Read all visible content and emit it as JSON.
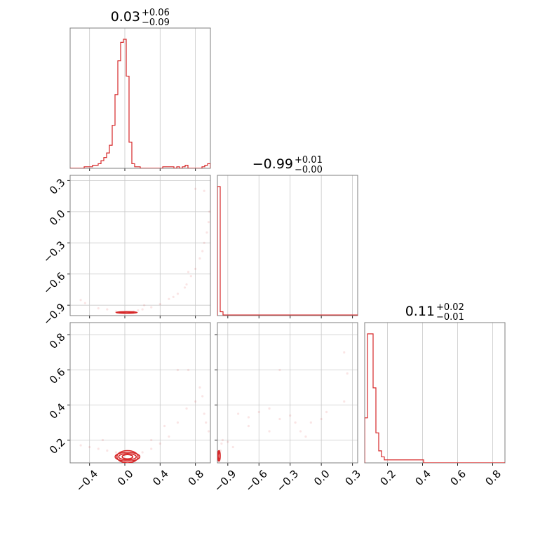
{
  "chart_data": {
    "type": "corner",
    "colors": {
      "series": "#d62728",
      "grid": "#c8c8c8",
      "frame": "#7f7f7f"
    },
    "params": [
      {
        "range": [
          -0.62,
          0.97
        ],
        "ticks": [
          -0.4,
          0.0,
          0.4,
          0.8
        ],
        "tick_labels": [
          "−0.4",
          "0.0",
          "0.4",
          "0.8"
        ],
        "title_main": "0.03",
        "title_plus": "+0.06",
        "title_minus": "−0.09"
      },
      {
        "range": [
          -1.0,
          0.35
        ],
        "ticks": [
          -0.9,
          -0.6,
          -0.3,
          0.0,
          0.3
        ],
        "tick_labels": [
          "−0.9",
          "−0.6",
          "−0.3",
          "0.0",
          "0.3"
        ],
        "title_main": "−0.99",
        "title_plus": "+0.01",
        "title_minus": "−0.00"
      },
      {
        "range": [
          0.07,
          0.87
        ],
        "ticks": [
          0.2,
          0.4,
          0.6,
          0.8
        ],
        "tick_labels": [
          "0.2",
          "0.4",
          "0.6",
          "0.8"
        ],
        "title_main": "0.11",
        "title_plus": "+0.02",
        "title_minus": "−0.01"
      }
    ],
    "hist1d": [
      {
        "param": 0,
        "edges_start": -0.62,
        "bin_width": 0.0318,
        "counts": [
          0,
          0,
          0,
          0,
          0,
          1,
          1,
          1,
          2,
          2,
          3,
          5,
          7,
          10,
          15,
          28,
          48,
          70,
          82,
          84,
          60,
          17,
          3,
          1,
          1,
          0,
          0,
          0,
          0,
          0,
          0,
          0,
          0,
          1,
          1,
          1,
          1,
          0,
          1,
          0,
          1,
          2,
          0,
          0,
          0,
          0,
          0,
          1,
          2,
          3
        ]
      },
      {
        "param": 1,
        "edges_start": -1.0,
        "bin_width": 0.027,
        "counts": [
          100,
          3,
          0.5,
          0.5,
          0.5,
          0.5,
          0.5,
          0.5,
          0.5,
          0.5,
          0.5,
          0.5,
          0.5,
          0.5,
          0.5,
          0.5,
          0.5,
          0.5,
          0.5,
          0.5,
          0.5,
          0.5,
          0.5,
          0.5,
          0.5,
          0.5,
          0.5,
          0.5,
          0.5,
          0.5,
          0.5,
          0.5,
          0.5,
          0.5,
          0.5,
          0.5,
          0.5,
          0.5,
          0.5,
          0.5,
          0.5,
          0.5,
          0.5,
          0.5,
          0.5,
          0.5,
          0.5,
          0.5,
          0.5,
          0.5
        ]
      },
      {
        "param": 2,
        "edges_start": 0.07,
        "bin_width": 0.016,
        "counts": [
          15,
          43,
          43,
          25,
          10,
          4,
          2,
          1,
          1,
          1,
          1,
          1,
          1,
          1,
          1,
          1,
          1,
          1,
          1,
          1,
          1,
          0,
          0,
          0,
          0,
          0,
          0,
          0,
          0,
          0,
          0,
          0,
          0,
          0,
          0,
          0,
          0,
          0,
          0,
          0,
          0,
          0,
          0,
          0,
          0,
          0,
          0,
          0,
          0,
          0
        ]
      }
    ],
    "scatter": [
      {
        "x": 0,
        "y": 1,
        "points": [
          [
            -0.3,
            -0.93
          ],
          [
            -0.2,
            -0.94
          ],
          [
            -0.1,
            -0.96
          ],
          [
            0.0,
            -0.97
          ],
          [
            0.05,
            -0.965
          ],
          [
            0.1,
            -0.96
          ],
          [
            0.15,
            -0.95
          ],
          [
            0.2,
            -0.94
          ],
          [
            0.3,
            -0.92
          ],
          [
            0.4,
            -0.89
          ],
          [
            0.5,
            -0.84
          ],
          [
            0.6,
            -0.79
          ],
          [
            0.7,
            -0.7
          ],
          [
            0.75,
            -0.62
          ],
          [
            0.8,
            -0.55
          ],
          [
            0.85,
            -0.45
          ],
          [
            0.9,
            -0.3
          ],
          [
            0.93,
            -0.2
          ],
          [
            0.95,
            -0.1
          ],
          [
            0.96,
            0.0
          ],
          [
            0.88,
            -0.38
          ],
          [
            0.68,
            -0.73
          ],
          [
            -0.45,
            -0.88
          ],
          [
            -0.5,
            -0.85
          ],
          [
            0.22,
            -0.9
          ],
          [
            0.8,
            0.22
          ],
          [
            0.9,
            0.2
          ],
          [
            0.55,
            -0.82
          ],
          [
            0.72,
            -0.58
          ]
        ]
      },
      {
        "x": 0,
        "y": 2,
        "points": [
          [
            -0.5,
            0.17
          ],
          [
            -0.4,
            0.16
          ],
          [
            -0.3,
            0.15
          ],
          [
            -0.2,
            0.14
          ],
          [
            -0.1,
            0.13
          ],
          [
            0.0,
            0.12
          ],
          [
            0.1,
            0.12
          ],
          [
            0.2,
            0.13
          ],
          [
            0.3,
            0.15
          ],
          [
            0.4,
            0.18
          ],
          [
            0.5,
            0.22
          ],
          [
            0.6,
            0.3
          ],
          [
            0.7,
            0.38
          ],
          [
            0.8,
            0.42
          ],
          [
            0.9,
            0.35
          ],
          [
            0.95,
            0.25
          ],
          [
            0.85,
            0.5
          ],
          [
            0.72,
            0.6
          ],
          [
            0.6,
            0.6
          ],
          [
            0.88,
            0.45
          ],
          [
            -0.25,
            0.2
          ],
          [
            0.3,
            0.2
          ],
          [
            0.45,
            0.28
          ],
          [
            0.92,
            0.3
          ]
        ]
      },
      {
        "x": 1,
        "y": 2,
        "points": [
          [
            -0.98,
            0.12
          ],
          [
            -0.97,
            0.14
          ],
          [
            -0.96,
            0.18
          ],
          [
            -0.95,
            0.2
          ],
          [
            -0.9,
            0.19
          ],
          [
            -0.85,
            0.16
          ],
          [
            -0.8,
            0.35
          ],
          [
            -0.7,
            0.33
          ],
          [
            -0.6,
            0.36
          ],
          [
            -0.5,
            0.38
          ],
          [
            -0.4,
            0.32
          ],
          [
            -0.3,
            0.34
          ],
          [
            -0.25,
            0.3
          ],
          [
            -0.2,
            0.25
          ],
          [
            -0.15,
            0.22
          ],
          [
            -0.4,
            0.6
          ],
          [
            -0.1,
            0.3
          ],
          [
            0.0,
            0.32
          ],
          [
            0.05,
            0.36
          ],
          [
            0.22,
            0.42
          ],
          [
            0.25,
            0.58
          ],
          [
            0.22,
            0.7
          ],
          [
            -0.5,
            0.25
          ],
          [
            -0.7,
            0.28
          ]
        ]
      }
    ],
    "contours": [
      {
        "x": 0,
        "y": 1,
        "center": [
          0.02,
          -0.97
        ],
        "radii": [
          [
            0.12,
            0.008
          ],
          [
            0.08,
            0.006
          ]
        ]
      },
      {
        "x": 0,
        "y": 2,
        "center": [
          0.03,
          0.105
        ],
        "radii": [
          [
            0.14,
            0.025
          ],
          [
            0.1,
            0.018
          ],
          [
            0.06,
            0.012
          ],
          [
            0.12,
            0.035
          ]
        ]
      },
      {
        "x": 1,
        "y": 2,
        "center": [
          -0.985,
          0.11
        ],
        "radii": [
          [
            0.012,
            0.03
          ],
          [
            0.008,
            0.02
          ]
        ]
      }
    ]
  }
}
